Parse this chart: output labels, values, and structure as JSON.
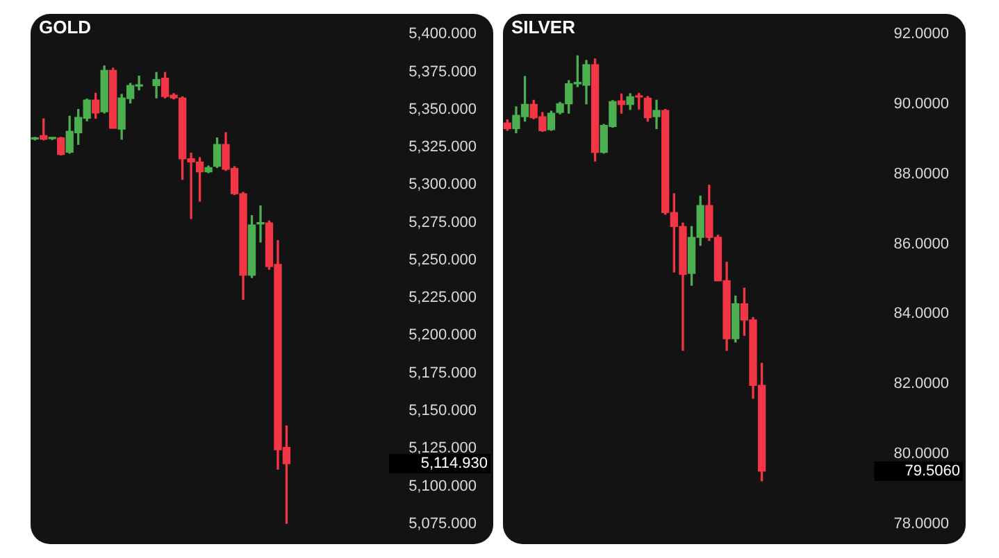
{
  "chart_data": [
    {
      "type": "candlestick",
      "title": "GOLD",
      "categories": [
        null,
        null,
        null,
        null,
        null,
        null,
        null,
        null,
        null,
        null,
        null,
        null,
        null,
        null,
        null,
        null,
        null,
        null,
        null,
        null,
        null,
        null,
        null,
        null,
        null,
        null,
        null,
        null,
        null,
        null,
        null,
        null,
        null,
        null,
        null,
        null,
        null,
        null,
        null,
        null,
        null
      ],
      "ohlc": [
        [
          5330.4,
          5331.5,
          5329.8,
          5330.8
        ],
        [
          5332.6,
          5343.8,
          5329.8,
          5330.3
        ],
        [
          5330.6,
          5331.2,
          5330.0,
          5330.8
        ],
        [
          5331.2,
          5331.5,
          5319.8,
          5320.1
        ],
        [
          5321.6,
          5345.6,
          5321.0,
          5335.5
        ],
        [
          5334.5,
          5350.0,
          5326.8,
          5344.7
        ],
        [
          5344.2,
          5357.0,
          5342.5,
          5356.3
        ],
        [
          5356.3,
          5360.7,
          5344.2,
          5347.7
        ],
        [
          5348.5,
          5378.9,
          5347.7,
          5376.0
        ],
        [
          5376.0,
          5377.5,
          5337.5,
          5337.5
        ],
        [
          5336.9,
          5360.1,
          5330.3,
          5357.7
        ],
        [
          5357.2,
          5367.3,
          5354.3,
          5365.9
        ],
        [
          5365.5,
          5372.2,
          5363.0,
          5366.3
        ],
        null,
        [
          5365.9,
          5374.6,
          5357.7,
          5369.9
        ],
        [
          5370.8,
          5374.6,
          5357.7,
          5358.6
        ],
        [
          5359.5,
          5360.5,
          5357.0,
          5357.7
        ],
        [
          5357.7,
          5358.5,
          5303.6,
          5317.3
        ],
        [
          5317.3,
          5321.0,
          5277.6,
          5315.2
        ],
        [
          5315.2,
          5318.1,
          5289.2,
          5308.6
        ],
        [
          5308.6,
          5312.5,
          5308.0,
          5311.5
        ],
        [
          5312.3,
          5331.2,
          5311.5,
          5326.8
        ],
        [
          5326.8,
          5334.6,
          5309.5,
          5310.3
        ],
        [
          5310.9,
          5312.0,
          5293.5,
          5294.1
        ],
        [
          5294.1,
          5295.0,
          5224.0,
          5240.0
        ],
        [
          5240.0,
          5279.6,
          5238.5,
          5273.3
        ],
        [
          5274.0,
          5286.0,
          5262.0,
          5275.0
        ],
        [
          5274.7,
          5276.0,
          5244.0,
          5245.8
        ],
        [
          5247.2,
          5263.0,
          5111.2,
          5124.2
        ],
        [
          5125.7,
          5140.0,
          5075,
          5114.93
        ],
        null,
        null,
        null,
        null,
        null,
        null,
        null,
        null,
        null,
        null,
        null
      ],
      "colors": [
        "#4caf50",
        "#f23645",
        "#4caf50",
        "#f23645",
        "#4caf50",
        "#4caf50",
        "#4caf50",
        "#f23645",
        "#4caf50",
        "#f23645",
        "#4caf50",
        "#4caf50",
        "#4caf50",
        null,
        "#4caf50",
        "#f23645",
        "#f23645",
        "#f23645",
        "#f23645",
        "#f23645",
        "#4caf50",
        "#4caf50",
        "#f23645",
        "#f23645",
        "#f23645",
        "#4caf50",
        "#4caf50",
        "#f23645",
        "#f23645",
        "#f23645",
        null,
        null,
        null,
        null,
        null,
        null,
        null,
        null,
        null,
        null,
        null
      ],
      "ylim": [
        5075,
        5400
      ],
      "yticks": [
        {
          "value": 5400,
          "label": "5,400.000"
        },
        {
          "value": 5375,
          "label": "5,375.000"
        },
        {
          "value": 5350,
          "label": "5,350.000"
        },
        {
          "value": 5325,
          "label": "5,325.000"
        },
        {
          "value": 5300,
          "label": "5,300.000"
        },
        {
          "value": 5275,
          "label": "5,275.000"
        },
        {
          "value": 5250,
          "label": "5,250.000"
        },
        {
          "value": 5225,
          "label": "5,225.000"
        },
        {
          "value": 5200,
          "label": "5,200.000"
        },
        {
          "value": 5175,
          "label": "5,175.000"
        },
        {
          "value": 5150,
          "label": "5,150.000"
        },
        {
          "value": 5125,
          "label": "5,125.000"
        },
        {
          "value": 5100,
          "label": "5,100.000"
        },
        {
          "value": 5075,
          "label": "5,075.000"
        }
      ],
      "annotations": [
        "5,114.930"
      ],
      "tick_labels": "y",
      "grid": false,
      "legend": false
    },
    {
      "type": "candlestick",
      "title": "SILVER",
      "categories": [
        null,
        null,
        null,
        null,
        null,
        null,
        null,
        null,
        null,
        null,
        null,
        null,
        null,
        null,
        null,
        null,
        null,
        null,
        null,
        null,
        null,
        null,
        null,
        null,
        null,
        null,
        null,
        null,
        null,
        null,
        null,
        null,
        null,
        null,
        null,
        null,
        null,
        null,
        null,
        null,
        null,
        null
      ],
      "ohlc": [
        [
          89.46,
          89.55,
          89.25,
          89.3
        ],
        [
          89.3,
          89.92,
          89.18,
          89.68
        ],
        [
          89.64,
          90.79,
          89.51,
          89.99
        ],
        [
          89.99,
          90.11,
          89.58,
          89.61
        ],
        [
          89.64,
          89.76,
          89.22,
          89.24
        ],
        [
          89.27,
          89.8,
          89.25,
          89.74
        ],
        [
          89.76,
          90.05,
          89.72,
          90.01
        ],
        [
          90.01,
          90.67,
          89.74,
          90.58
        ],
        [
          90.58,
          91.38,
          90.5,
          90.6
        ],
        [
          90.54,
          91.25,
          90.01,
          91.13
        ],
        [
          91.13,
          91.29,
          88.37,
          88.62
        ],
        [
          88.62,
          89.42,
          88.6,
          89.39
        ],
        [
          89.36,
          90.1,
          89.34,
          90.07
        ],
        [
          90.09,
          90.29,
          89.74,
          89.99
        ],
        [
          89.99,
          90.3,
          89.85,
          90.21
        ],
        [
          90.24,
          90.31,
          89.86,
          90.2
        ],
        [
          90.17,
          90.22,
          89.51,
          89.61
        ],
        [
          89.64,
          90.11,
          89.3,
          89.82
        ],
        [
          89.82,
          89.85,
          86.85,
          86.9
        ],
        [
          86.9,
          87.44,
          85.2,
          86.5
        ],
        [
          86.5,
          86.6,
          82.96,
          85.13
        ],
        [
          85.16,
          86.5,
          84.82,
          86.19
        ],
        [
          86.19,
          87.37,
          85.96,
          87.1
        ],
        [
          87.1,
          87.68,
          86.1,
          86.19
        ],
        [
          86.19,
          86.25,
          84.95,
          84.95
        ],
        [
          84.95,
          85.48,
          82.96,
          83.29
        ],
        [
          83.29,
          84.51,
          83.2,
          84.29
        ],
        [
          84.29,
          84.74,
          83.39,
          83.83
        ],
        [
          83.83,
          83.9,
          81.59,
          81.96
        ],
        [
          81.96,
          82.59,
          79.23,
          79.506
        ],
        null,
        null,
        null,
        null,
        null,
        null,
        null,
        null,
        null,
        null,
        null,
        null
      ],
      "colors": [
        "#f23645",
        "#4caf50",
        "#4caf50",
        "#f23645",
        "#f23645",
        "#4caf50",
        "#4caf50",
        "#4caf50",
        "#4caf50",
        "#4caf50",
        "#f23645",
        "#4caf50",
        "#4caf50",
        "#f23645",
        "#4caf50",
        "#f23645",
        "#f23645",
        "#4caf50",
        "#f23645",
        "#f23645",
        "#f23645",
        "#4caf50",
        "#4caf50",
        "#f23645",
        "#f23645",
        "#f23645",
        "#4caf50",
        "#f23645",
        "#f23645",
        "#f23645",
        null,
        null,
        null,
        null,
        null,
        null,
        null,
        null,
        null,
        null,
        null,
        null
      ],
      "ylim": [
        78,
        92
      ],
      "yticks": [
        {
          "value": 92,
          "label": "92.0000"
        },
        {
          "value": 90,
          "label": "90.0000"
        },
        {
          "value": 88,
          "label": "88.0000"
        },
        {
          "value": 86,
          "label": "86.0000"
        },
        {
          "value": 84,
          "label": "84.0000"
        },
        {
          "value": 82,
          "label": "82.0000"
        },
        {
          "value": 80,
          "label": "80.0000"
        },
        {
          "value": 78,
          "label": "78.0000"
        }
      ],
      "annotations": [
        "79.5060"
      ],
      "tick_labels": "y",
      "grid": false,
      "legend": false
    }
  ]
}
